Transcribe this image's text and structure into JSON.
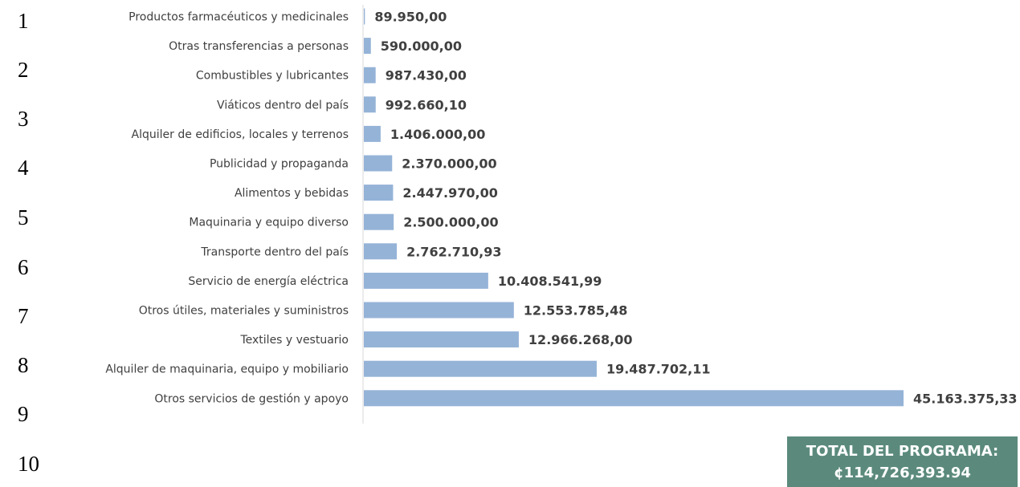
{
  "line_numbers": [
    "1",
    "2",
    "3",
    "4",
    "5",
    "6",
    "7",
    "8",
    "9",
    "10"
  ],
  "chart_data": {
    "type": "bar",
    "orientation": "horizontal",
    "categories": [
      "Productos farmacéuticos y medicinales",
      "Otras transferencias a personas",
      "Combustibles y lubricantes",
      "Viáticos dentro del país",
      "Alquiler de edificios, locales y terrenos",
      "Publicidad y propaganda",
      "Alimentos y bebidas",
      "Maquinaria y equipo diverso",
      "Transporte dentro del país",
      "Servicio de energía eléctrica",
      "Otros útiles, materiales y suministros",
      "Textiles y vestuario",
      "Alquiler de maquinaria, equipo y mobiliario",
      "Otros servicios de gestión y apoyo"
    ],
    "values": [
      89950.0,
      590000.0,
      987430.0,
      992660.1,
      1406000.0,
      2370000.0,
      2447970.0,
      2500000.0,
      2762710.93,
      10408541.99,
      12553785.48,
      12966268.0,
      19487702.11,
      45163375.33
    ],
    "value_labels": [
      "89.950,00",
      "590.000,00",
      "987.430,00",
      "992.660,10",
      "1.406.000,00",
      "2.370.000,00",
      "2.447.970,00",
      "2.500.000,00",
      "2.762.710,93",
      "10.408.541,99",
      "12.553.785,48",
      "12.966.268,00",
      "19.487.702,11",
      "45.163.375,33"
    ],
    "bar_color": "#95b3d7",
    "grid": false,
    "legend": "none"
  },
  "total": {
    "label": "TOTAL DEL PROGRAMA:",
    "value": "¢114,726,393.94",
    "background": "#5b8a7c"
  }
}
